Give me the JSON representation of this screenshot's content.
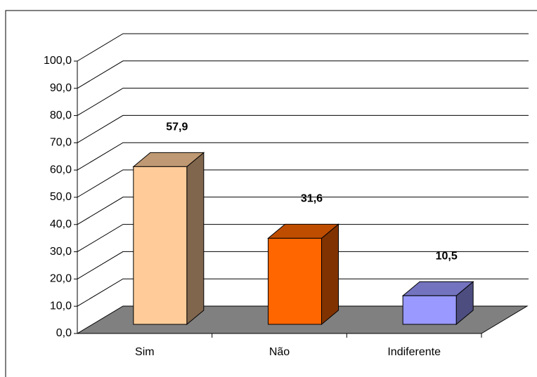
{
  "chart_data": {
    "type": "bar3d",
    "categories": [
      "Sim",
      "Não",
      "Indiferente"
    ],
    "values": [
      57.9,
      31.6,
      10.5
    ],
    "value_labels": [
      "57,9",
      "31,6",
      "10,5"
    ],
    "colors": [
      "#ffcc99",
      "#ff6600",
      "#9999ff"
    ],
    "ylim": [
      0,
      100
    ],
    "yticks": [
      {
        "value": 0,
        "label": "0,0"
      },
      {
        "value": 10,
        "label": "10,0"
      },
      {
        "value": 20,
        "label": "20,0"
      },
      {
        "value": 30,
        "label": "30,0"
      },
      {
        "value": 40,
        "label": "40,0"
      },
      {
        "value": 50,
        "label": "50,0"
      },
      {
        "value": 60,
        "label": "60,0"
      },
      {
        "value": 70,
        "label": "70,0"
      },
      {
        "value": 80,
        "label": "80,0"
      },
      {
        "value": 90,
        "label": "90,0"
      },
      {
        "value": 100,
        "label": "100,0"
      }
    ],
    "grid": true
  }
}
